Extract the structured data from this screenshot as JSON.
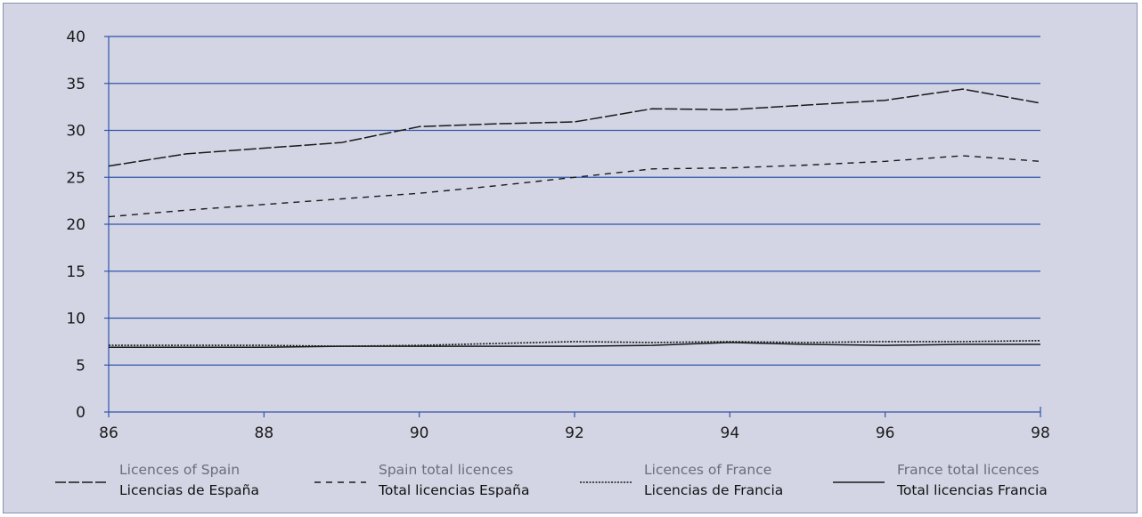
{
  "chart_data": {
    "type": "line",
    "title": "",
    "xlabel": "",
    "ylabel": "",
    "x": [
      86,
      87,
      88,
      89,
      90,
      91,
      92,
      93,
      94,
      95,
      96,
      97,
      98
    ],
    "x_tick_labels": [
      "86",
      "88",
      "90",
      "92",
      "94",
      "96",
      "98"
    ],
    "y_tick_labels": [
      "0",
      "5",
      "10",
      "15",
      "20",
      "25",
      "30",
      "35",
      "40"
    ],
    "xlim": [
      86,
      98
    ],
    "ylim": [
      0,
      40
    ],
    "grid": "horizontal",
    "legend_position": "bottom",
    "colors": {
      "background": "#d3d5e4",
      "grid": "#2f55a8",
      "axis": "#2f55a8",
      "line": "#1a1a1a"
    },
    "series": [
      {
        "name": "Licences of Spain",
        "name_es": "Licencias de España",
        "style": "long-dash",
        "values": [
          26.2,
          27.5,
          28.1,
          28.7,
          30.4,
          30.7,
          30.9,
          32.3,
          32.2,
          32.7,
          33.2,
          34.4,
          32.9
        ]
      },
      {
        "name": "Spain total licences",
        "name_es": "Total licencias España",
        "style": "dash",
        "values": [
          20.8,
          21.5,
          22.1,
          22.7,
          23.3,
          24.1,
          25.0,
          25.9,
          26.0,
          26.3,
          26.7,
          27.3,
          26.7
        ]
      },
      {
        "name": "Licences of France",
        "name_es": "Licencias de Francia",
        "style": "dotted",
        "values": [
          7.1,
          7.1,
          7.1,
          7.0,
          7.1,
          7.3,
          7.5,
          7.4,
          7.5,
          7.4,
          7.5,
          7.5,
          7.6
        ]
      },
      {
        "name": "France total licences",
        "name_es": "Total licencias Francia",
        "style": "solid",
        "values": [
          6.9,
          6.9,
          6.9,
          7.0,
          7.0,
          7.0,
          7.0,
          7.1,
          7.4,
          7.2,
          7.1,
          7.2,
          7.2
        ]
      }
    ]
  }
}
